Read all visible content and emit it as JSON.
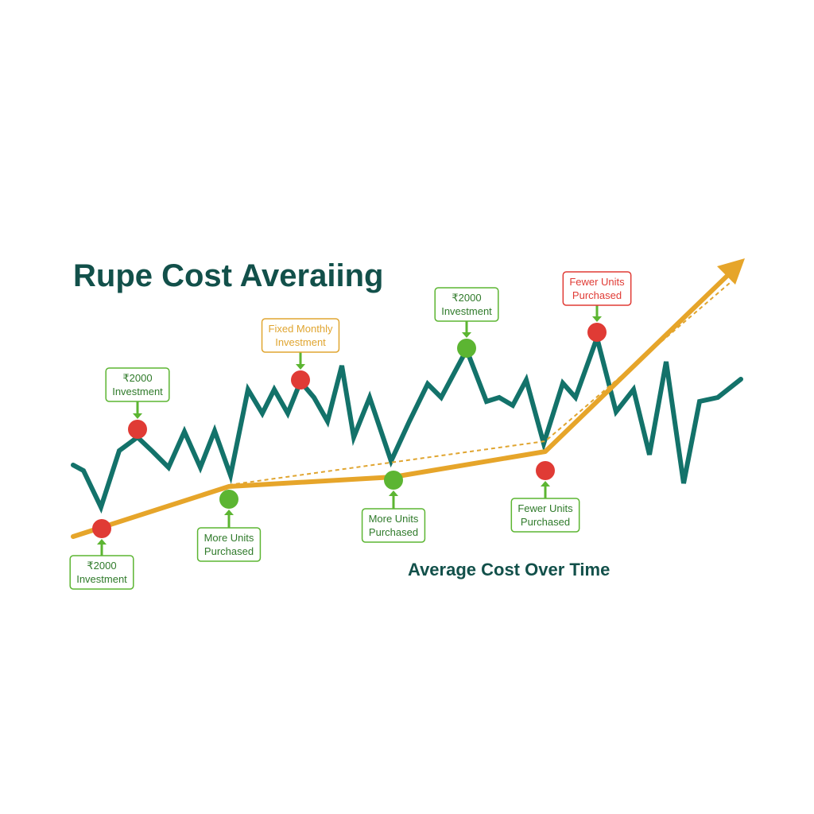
{
  "title": "Rupe Cost Averaiing",
  "caption": "Average Cost Over Time",
  "annotations": [
    {
      "lines": [
        "₹2000",
        "Investment"
      ]
    },
    {
      "lines": [
        "₹2000",
        "Investment"
      ]
    },
    {
      "lines": [
        "Fixed Monthly",
        "Investment"
      ]
    },
    {
      "lines": [
        "₹2000",
        "Investment"
      ]
    },
    {
      "lines": [
        "Fewer Units",
        "Purchased"
      ]
    },
    {
      "lines": [
        "More Units",
        "Purchased"
      ]
    },
    {
      "lines": [
        "More Units",
        "Purchased"
      ]
    },
    {
      "lines": [
        "Fewer Units",
        "Purchased"
      ]
    }
  ]
}
